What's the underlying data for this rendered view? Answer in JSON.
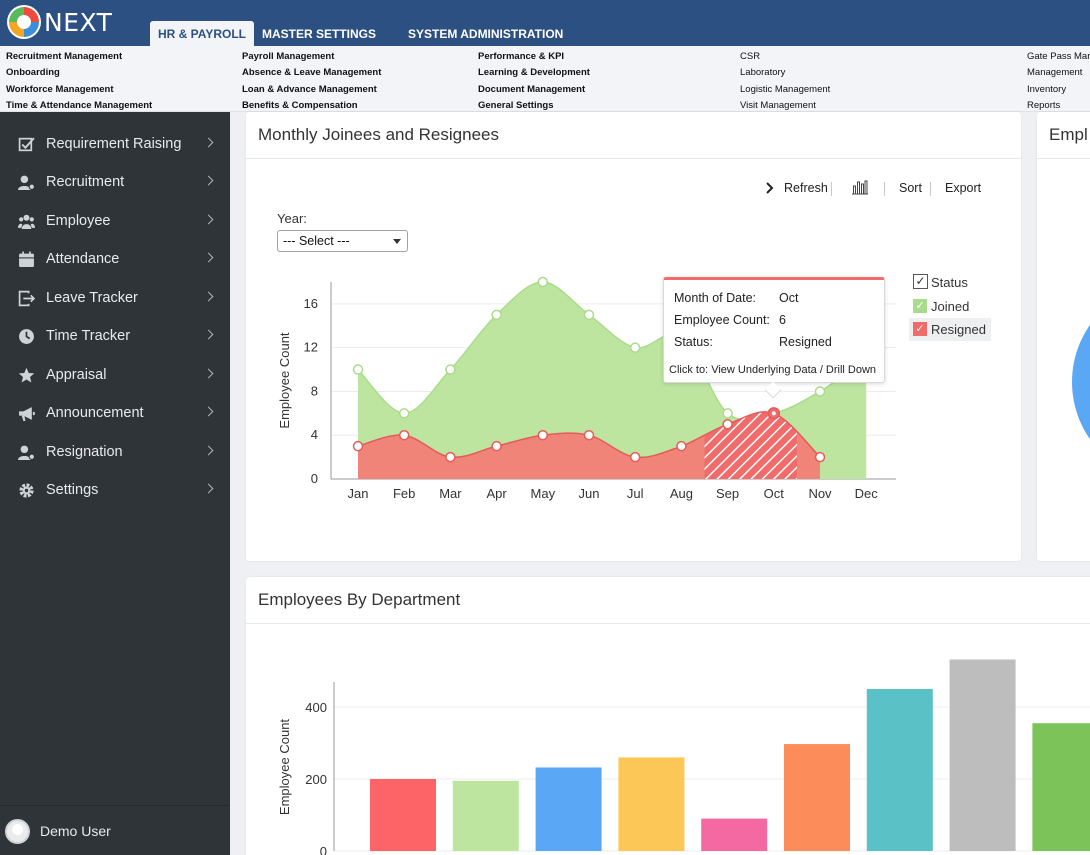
{
  "app": {
    "logo_text": "NEXT"
  },
  "tabs": [
    {
      "label": "HR & PAYROLL",
      "active": true
    },
    {
      "label": "MASTER SETTINGS",
      "active": false
    },
    {
      "label": "SYSTEM ADMINISTRATION",
      "active": false
    }
  ],
  "submenu": {
    "col1": [
      "Recruitment Management",
      "Onboarding",
      "Workforce Management",
      "Time & Attendance Management"
    ],
    "col2": [
      "Payroll Management",
      "Absence & Leave Management",
      "Loan & Advance Management",
      "Benefits & Compensation"
    ],
    "col3": [
      "Performance & KPI",
      "Learning & Development",
      "Document Management",
      "General Settings"
    ],
    "col4": [
      "CSR",
      "Laboratory",
      "Logistic Management",
      "Visit Management"
    ],
    "col5": [
      "Gate Pass Mar",
      "Management",
      "Inventory",
      "Reports"
    ]
  },
  "sidebar": {
    "items": [
      {
        "label": "Requirement Raising",
        "icon": "checkbox-edit-icon"
      },
      {
        "label": "Recruitment",
        "icon": "user-gear-icon"
      },
      {
        "label": "Employee",
        "icon": "users-icon"
      },
      {
        "label": "Attendance",
        "icon": "calendar-icon"
      },
      {
        "label": "Leave Tracker",
        "icon": "sign-out-icon"
      },
      {
        "label": "Time Tracker",
        "icon": "clock-icon"
      },
      {
        "label": "Appraisal",
        "icon": "star-icon"
      },
      {
        "label": "Announcement",
        "icon": "megaphone-icon"
      },
      {
        "label": "Resignation",
        "icon": "user-minus-icon"
      },
      {
        "label": "Settings",
        "icon": "gear-icon"
      }
    ],
    "user_name": "Demo User"
  },
  "card1": {
    "title": "Monthly Joinees and Resignees",
    "toolbar": {
      "refresh": "Refresh",
      "sort": "Sort",
      "export": "Export"
    },
    "year_label": "Year:",
    "year_select": "--- Select ---",
    "legend": {
      "title": "Status",
      "joined": "Joined",
      "resigned": "Resigned",
      "check": "✓"
    },
    "tooltip": {
      "month_key": "Month of Date:",
      "month_val": "Oct",
      "count_key": "Employee Count:",
      "count_val": "6",
      "status_key": "Status:",
      "status_val": "Resigned",
      "click_prefix": "Click to:",
      "click_text": "View Underlying Data / Drill Down"
    }
  },
  "card2": {
    "title": "Empl"
  },
  "card3": {
    "title": "Employees By Department"
  },
  "chart_data": [
    {
      "type": "area",
      "title": "Monthly Joinees and Resignees",
      "xlabel": "",
      "ylabel": "Employee Count",
      "categories": [
        "Jan",
        "Feb",
        "Mar",
        "Apr",
        "May",
        "Jun",
        "Jul",
        "Aug",
        "Sep",
        "Oct",
        "Nov",
        "Dec"
      ],
      "ylim": [
        0,
        18
      ],
      "yticks": [
        0,
        4,
        8,
        12,
        16
      ],
      "series": [
        {
          "name": "Joined",
          "color": "#bde5a0",
          "values": [
            10,
            6,
            10,
            15,
            18,
            15,
            12,
            13,
            6,
            6,
            8,
            11
          ]
        },
        {
          "name": "Resigned",
          "color": "#f08478",
          "values": [
            3,
            4,
            2,
            3,
            4,
            4,
            2,
            3,
            5,
            6,
            2,
            null
          ]
        }
      ],
      "legend": "right",
      "grid": true
    },
    {
      "type": "bar",
      "title": "Employees By Department",
      "xlabel": "",
      "ylabel": "Employee Count",
      "ylim": [
        0,
        600
      ],
      "yticks": [
        0,
        200,
        400
      ],
      "values": [
        200,
        195,
        232,
        260,
        90,
        297,
        450,
        532,
        355
      ],
      "colors": [
        "#fd6467",
        "#bde5a0",
        "#5aa8f5",
        "#fdc758",
        "#f569a3",
        "#fc8c5a",
        "#5ac1c6",
        "#bdbdbd",
        "#7cc45a"
      ],
      "grid": true
    }
  ]
}
